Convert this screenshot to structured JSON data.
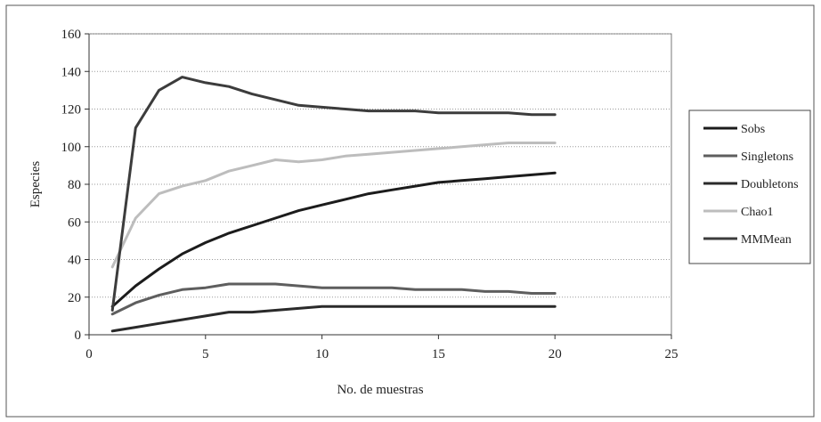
{
  "chart_data": {
    "type": "line",
    "title": "",
    "xlabel": "No. de muestras",
    "ylabel": "Especies",
    "xlim": [
      0,
      25
    ],
    "ylim": [
      0,
      160
    ],
    "xticks": [
      0,
      5,
      10,
      15,
      20,
      25
    ],
    "yticks": [
      0,
      20,
      40,
      60,
      80,
      100,
      120,
      140,
      160
    ],
    "grid": true,
    "legend_position": "right",
    "x": [
      1,
      2,
      3,
      4,
      5,
      6,
      7,
      8,
      9,
      10,
      11,
      12,
      13,
      14,
      15,
      16,
      17,
      18,
      19,
      20
    ],
    "series": [
      {
        "name": "Sobs",
        "color": "#1c1c1c",
        "values": [
          15,
          26,
          35,
          43,
          49,
          54,
          58,
          62,
          66,
          69,
          72,
          75,
          77,
          79,
          81,
          82,
          83,
          84,
          85,
          86
        ]
      },
      {
        "name": "Singletons",
        "color": "#5e5e5e",
        "values": [
          11,
          17,
          21,
          24,
          25,
          27,
          27,
          27,
          26,
          25,
          25,
          25,
          25,
          24,
          24,
          24,
          23,
          23,
          22,
          22
        ]
      },
      {
        "name": "Doubletons",
        "color": "#2a2a2a",
        "values": [
          2,
          4,
          6,
          8,
          10,
          12,
          12,
          13,
          14,
          15,
          15,
          15,
          15,
          15,
          15,
          15,
          15,
          15,
          15,
          15
        ]
      },
      {
        "name": "Chao1",
        "color": "#bdbdbd",
        "values": [
          36,
          62,
          75,
          79,
          82,
          87,
          90,
          93,
          92,
          93,
          95,
          96,
          97,
          98,
          99,
          100,
          101,
          102,
          102,
          102
        ]
      },
      {
        "name": "MMMean",
        "color": "#3c3c3c",
        "values": [
          13,
          110,
          130,
          137,
          134,
          132,
          128,
          125,
          122,
          121,
          120,
          119,
          119,
          119,
          118,
          118,
          118,
          118,
          117,
          117
        ]
      }
    ]
  }
}
